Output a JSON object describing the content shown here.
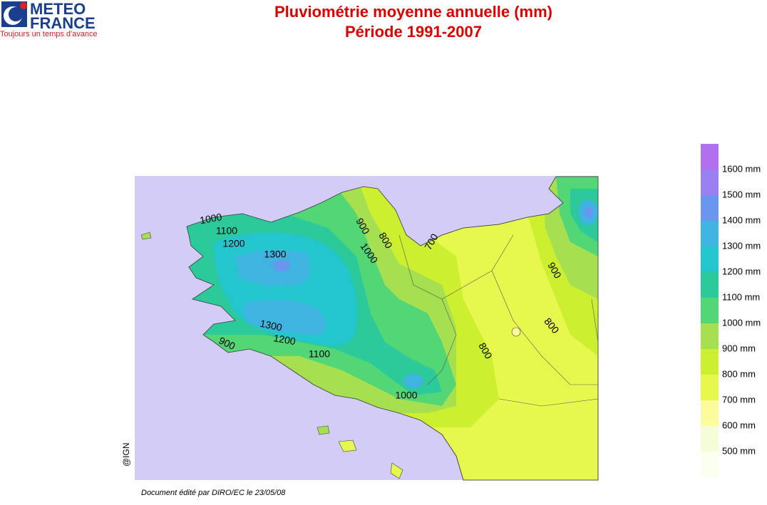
{
  "logo": {
    "line1": "METEO",
    "line2": "FRANCE",
    "tagline": "Toujours un temps d'avance"
  },
  "title": {
    "line1": "Pluviométrie moyenne annuelle (mm)",
    "line2": "Période 1991-2007"
  },
  "legend": {
    "items": [
      {
        "label": "1600 mm",
        "color": "#b070f0"
      },
      {
        "label": "1500 mm",
        "color": "#9a80f2"
      },
      {
        "label": "1400 mm",
        "color": "#6a96f0"
      },
      {
        "label": "1300 mm",
        "color": "#40b4e0"
      },
      {
        "label": "1200 mm",
        "color": "#22c6cc"
      },
      {
        "label": "1100 mm",
        "color": "#2cca9a"
      },
      {
        "label": "1000 mm",
        "color": "#52d676"
      },
      {
        "label": "900 mm",
        "color": "#a6e050"
      },
      {
        "label": "800 mm",
        "color": "#ccf030"
      },
      {
        "label": "700 mm",
        "color": "#e6f84e"
      },
      {
        "label": "600 mm",
        "color": "#fcfc9a"
      },
      {
        "label": "500 mm",
        "color": "#f4fcd8"
      }
    ],
    "below_color": "#fafff0"
  },
  "contour_labels": [
    "1000",
    "1100",
    "1200",
    "1300",
    "900",
    "800",
    "700",
    "1000",
    "900",
    "800",
    "800",
    "1300",
    "1200",
    "900",
    "1100",
    "1000"
  ],
  "credit": "@IGN",
  "footer": "Document édité par DIRO/EC le 23/05/08"
}
